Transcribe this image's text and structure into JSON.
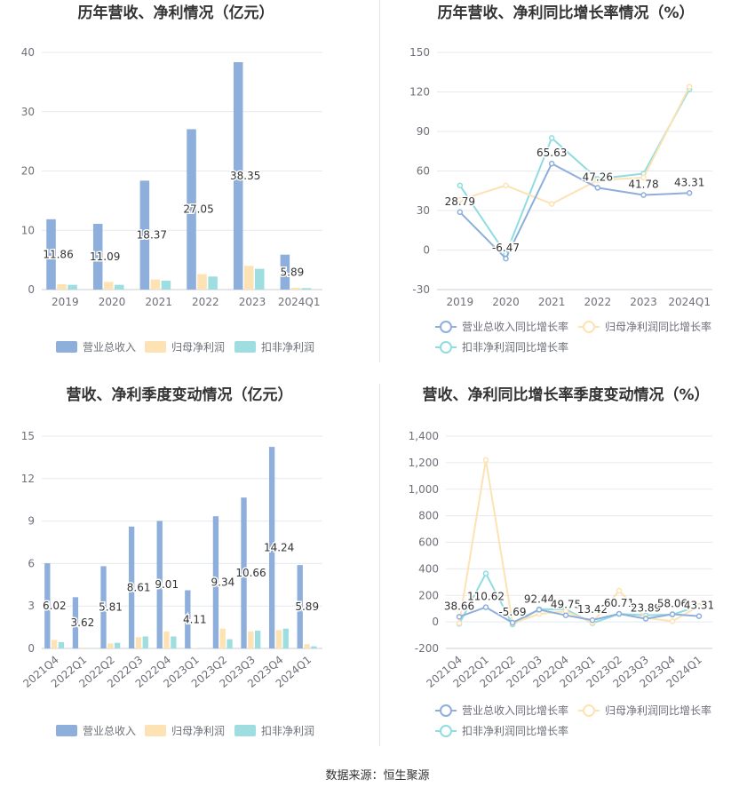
{
  "source_label": "数据来源：恒生聚源",
  "colors": {
    "revenue": "#8eaedb",
    "parent_profit": "#fde2b3",
    "nonrecurring_profit": "#9fdee0",
    "line_revenue": "#8eaedb",
    "line_parent": "#fde2b3",
    "line_nonrec": "#8fdde0",
    "grid": "#e5e9f0",
    "axis_text": "#6e7079",
    "title_text": "#333333",
    "label_text": "#333333"
  },
  "chart_data": [
    {
      "type": "bar",
      "title": "历年营收、净利情况（亿元）",
      "categories": [
        "2019",
        "2020",
        "2021",
        "2022",
        "2023",
        "2024Q1"
      ],
      "ylim": [
        0,
        40
      ],
      "yticks": [
        0,
        10,
        20,
        30,
        40
      ],
      "series": [
        {
          "name": "营业总收入",
          "values": [
            11.86,
            11.09,
            18.37,
            27.05,
            38.35,
            5.89
          ],
          "labels": [
            "11.86",
            "11.09",
            "18.37",
            "27.05",
            "38.35",
            "5.89"
          ]
        },
        {
          "name": "归母净利润",
          "values": [
            0.9,
            1.3,
            1.7,
            2.6,
            4.0,
            0.3
          ]
        },
        {
          "name": "扣非净利润",
          "values": [
            0.8,
            0.8,
            1.5,
            2.2,
            3.5,
            0.25
          ]
        }
      ],
      "legend_position": "bottom",
      "grid": true
    },
    {
      "type": "line",
      "title": "历年营收、净利同比增长率情况（%）",
      "categories": [
        "2019",
        "2020",
        "2021",
        "2022",
        "2023",
        "2024Q1"
      ],
      "ylim": [
        -30,
        150
      ],
      "yticks": [
        -30,
        0,
        30,
        60,
        90,
        120,
        150
      ],
      "series": [
        {
          "name": "营业总收入同比增长率",
          "values": [
            28.79,
            -6.47,
            65.63,
            47.26,
            41.78,
            43.31
          ],
          "labels": [
            "28.79",
            "-6.47",
            "65.63",
            "47.26",
            "41.78",
            "43.31"
          ]
        },
        {
          "name": "归母净利润同比增长率",
          "values": [
            38,
            49,
            35,
            53,
            55,
            124
          ]
        },
        {
          "name": "扣非净利润同比增长率",
          "values": [
            49,
            -3,
            85,
            54,
            58,
            122
          ]
        }
      ],
      "legend_position": "bottom",
      "grid": true
    },
    {
      "type": "bar",
      "title": "营收、净利季度变动情况（亿元）",
      "categories": [
        "2021Q4",
        "2022Q1",
        "2022Q2",
        "2022Q3",
        "2022Q4",
        "2023Q1",
        "2023Q2",
        "2023Q3",
        "2023Q4",
        "2024Q1"
      ],
      "ylim": [
        0,
        15
      ],
      "yticks": [
        0,
        3,
        6,
        9,
        12,
        15
      ],
      "series": [
        {
          "name": "营业总收入",
          "values": [
            6.02,
            3.62,
            5.81,
            8.61,
            9.01,
            4.11,
            9.34,
            10.66,
            14.24,
            5.89
          ],
          "labels": [
            "6.02",
            "3.62",
            "5.81",
            "8.61",
            "9.01",
            "4.11",
            "9.34",
            "10.66",
            "14.24",
            "5.89"
          ]
        },
        {
          "name": "归母净利润",
          "values": [
            0.6,
            0.05,
            0.35,
            0.8,
            1.2,
            0.03,
            1.4,
            1.2,
            1.3,
            0.3
          ]
        },
        {
          "name": "扣非净利润",
          "values": [
            0.45,
            0.02,
            0.4,
            0.85,
            0.85,
            0.02,
            0.65,
            1.25,
            1.4,
            0.15
          ]
        }
      ],
      "legend_position": "bottom",
      "grid": true
    },
    {
      "type": "line",
      "title": "营收、净利同比增长率季度变动情况（%）",
      "categories": [
        "2021Q4",
        "2022Q1",
        "2022Q2",
        "2022Q3",
        "2022Q4",
        "2023Q1",
        "2023Q2",
        "2023Q3",
        "2023Q4",
        "2024Q1"
      ],
      "ylim": [
        -200,
        1400
      ],
      "yticks": [
        -200,
        0,
        200,
        400,
        600,
        800,
        1000,
        1200,
        1400
      ],
      "ytick_labels": [
        "-200",
        "0",
        "200",
        "400",
        "600",
        "800",
        "1,000",
        "1,200",
        "1,400"
      ],
      "series": [
        {
          "name": "营业总收入同比增长率",
          "values": [
            38.66,
            110.62,
            -5.69,
            92.44,
            49.75,
            13.42,
            60.71,
            23.89,
            58.06,
            43.31
          ],
          "labels": [
            "38.66",
            "110.62",
            "-5.69",
            "92.44",
            "49.75",
            "13.42",
            "60.71",
            "23.89",
            "58.06",
            "43.31"
          ]
        },
        {
          "name": "归母净利润同比增长率",
          "values": [
            -10,
            1220,
            -10,
            60,
            80,
            -5,
            235,
            30,
            5,
            120
          ]
        },
        {
          "name": "扣非净利润同比增长率",
          "values": [
            -15,
            365,
            -20,
            95,
            95,
            -10,
            60,
            50,
            55,
            120
          ]
        }
      ],
      "legend_position": "bottom",
      "grid": true
    }
  ]
}
